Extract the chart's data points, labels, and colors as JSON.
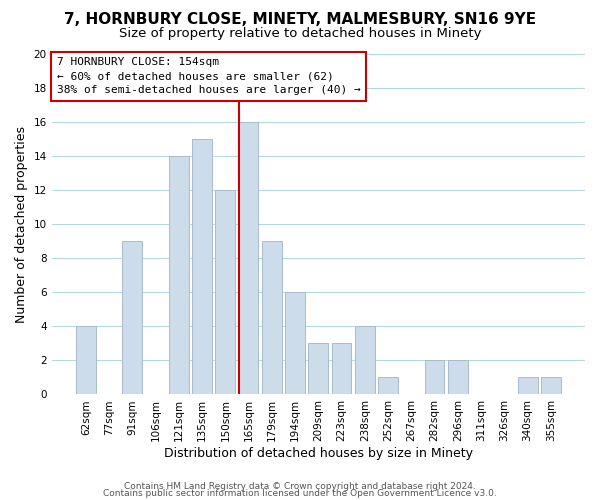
{
  "title": "7, HORNBURY CLOSE, MINETY, MALMESBURY, SN16 9YE",
  "subtitle": "Size of property relative to detached houses in Minety",
  "xlabel": "Distribution of detached houses by size in Minety",
  "ylabel": "Number of detached properties",
  "bar_labels": [
    "62sqm",
    "77sqm",
    "91sqm",
    "106sqm",
    "121sqm",
    "135sqm",
    "150sqm",
    "165sqm",
    "179sqm",
    "194sqm",
    "209sqm",
    "223sqm",
    "238sqm",
    "252sqm",
    "267sqm",
    "282sqm",
    "296sqm",
    "311sqm",
    "326sqm",
    "340sqm",
    "355sqm"
  ],
  "bar_heights": [
    4,
    0,
    9,
    0,
    14,
    15,
    12,
    16,
    9,
    6,
    3,
    3,
    4,
    1,
    0,
    2,
    2,
    0,
    0,
    1,
    1
  ],
  "bar_color": "#cddcea",
  "bar_edge_color": "#aabccc",
  "vline_x_idx": 7,
  "vline_color": "#cc0000",
  "ylim": [
    0,
    20
  ],
  "yticks": [
    0,
    2,
    4,
    6,
    8,
    10,
    12,
    14,
    16,
    18,
    20
  ],
  "annotation_title": "7 HORNBURY CLOSE: 154sqm",
  "annotation_line1": "← 60% of detached houses are smaller (62)",
  "annotation_line2": "38% of semi-detached houses are larger (40) →",
  "annotation_box_facecolor": "#ffffff",
  "annotation_border_color": "#cc0000",
  "footer1": "Contains HM Land Registry data © Crown copyright and database right 2024.",
  "footer2": "Contains public sector information licensed under the Open Government Licence v3.0.",
  "title_fontsize": 11,
  "subtitle_fontsize": 9.5,
  "axis_label_fontsize": 9,
  "tick_fontsize": 7.5,
  "annotation_fontsize": 8,
  "footer_fontsize": 6.5
}
